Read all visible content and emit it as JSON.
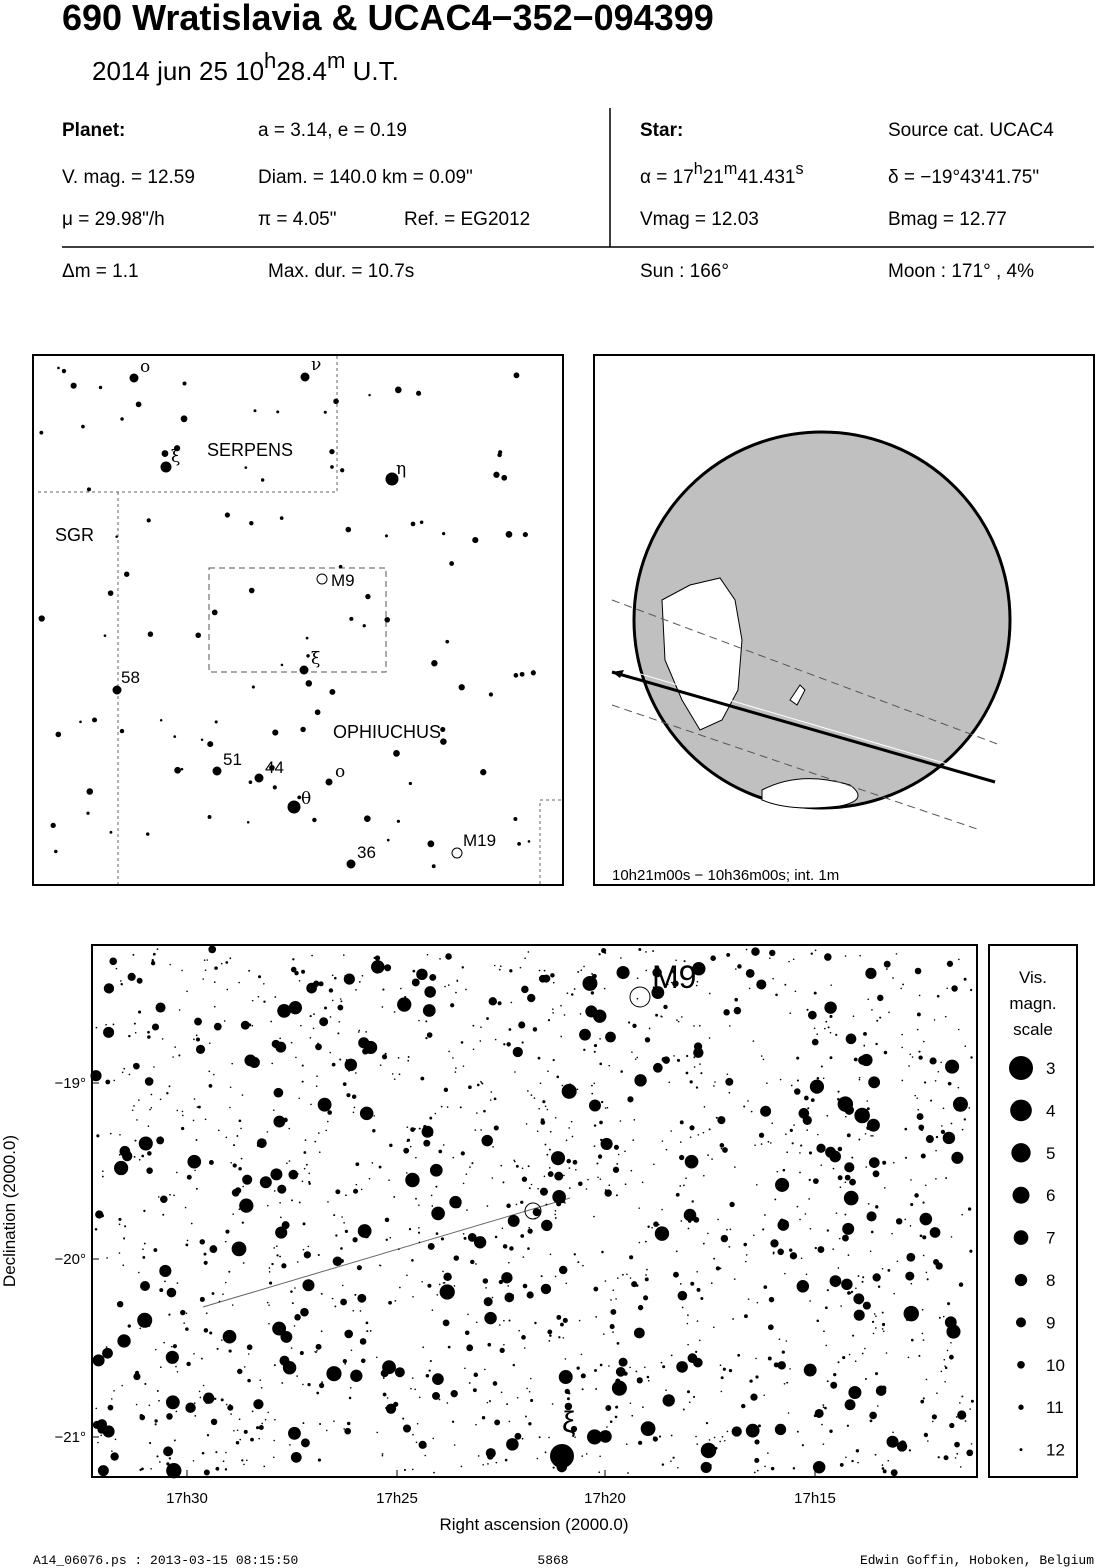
{
  "header": {
    "title": "690 Wratislavia  &  UCAC4−352−094399",
    "date_parts": [
      {
        "text": "2014 jun 25  10"
      },
      {
        "text": "h",
        "sup": true
      },
      {
        "text": "28.4"
      },
      {
        "text": "m",
        "sup": true
      },
      {
        "text": " U.T."
      }
    ]
  },
  "planet": {
    "label": "Planet:",
    "orbit": "a = 3.14, e = 0.19",
    "vmag": "V. mag. = 12.59",
    "diam": "Diam. = 140.0 km = 0.09\"",
    "mu": "μ =  29.98\"/h",
    "pi": "π =  4.05\"",
    "ref": "Ref. = EG2012"
  },
  "star": {
    "label": "Star:",
    "source": "Source cat.  UCAC4",
    "ra_parts": [
      {
        "text": "α = 17"
      },
      {
        "text": "h",
        "sup": true
      },
      {
        "text": "21"
      },
      {
        "text": "m",
        "sup": true
      },
      {
        "text": "41.431"
      },
      {
        "text": "s",
        "sup": true
      }
    ],
    "dec": "δ = −19°43'41.75\"",
    "vmag": "Vmag = 12.03",
    "bmag": "Bmag = 12.77"
  },
  "event": {
    "dm": "Δm = 1.1",
    "maxdur": "Max. dur. = 10.7s",
    "sun": "Sun : 166°",
    "moon": "Moon : 171° ,  4%"
  },
  "finder": {
    "labels": [
      "ο",
      "ν",
      "ξ",
      "SERPENS",
      "η",
      "SGR",
      "M9",
      "ξ",
      "58",
      "OPHIUCHUS",
      "51",
      "44",
      "ο",
      "θ",
      "M19",
      "36"
    ]
  },
  "globe": {
    "caption": "10h21m00s − 10h36m00s; int.  1m"
  },
  "starchart": {
    "xlabel": "Right ascension (2000.0)",
    "ylabel": "Declination (2000.0)",
    "xticks": [
      "17h30",
      "17h25",
      "17h20",
      "17h15"
    ],
    "yticks": [
      "−19°",
      "−20°",
      "−21°"
    ],
    "m9": "M9",
    "xi": "ξ",
    "scale_title": [
      "Vis.",
      "magn.",
      "scale"
    ],
    "scale": [
      3,
      4,
      5,
      6,
      7,
      8,
      9,
      10,
      11,
      12
    ]
  },
  "footer": {
    "file": "A14_06076.ps : 2013-03-15 08:15:50",
    "number": "5868",
    "author": "Edwin Goffin, Hoboken, Belgium"
  }
}
